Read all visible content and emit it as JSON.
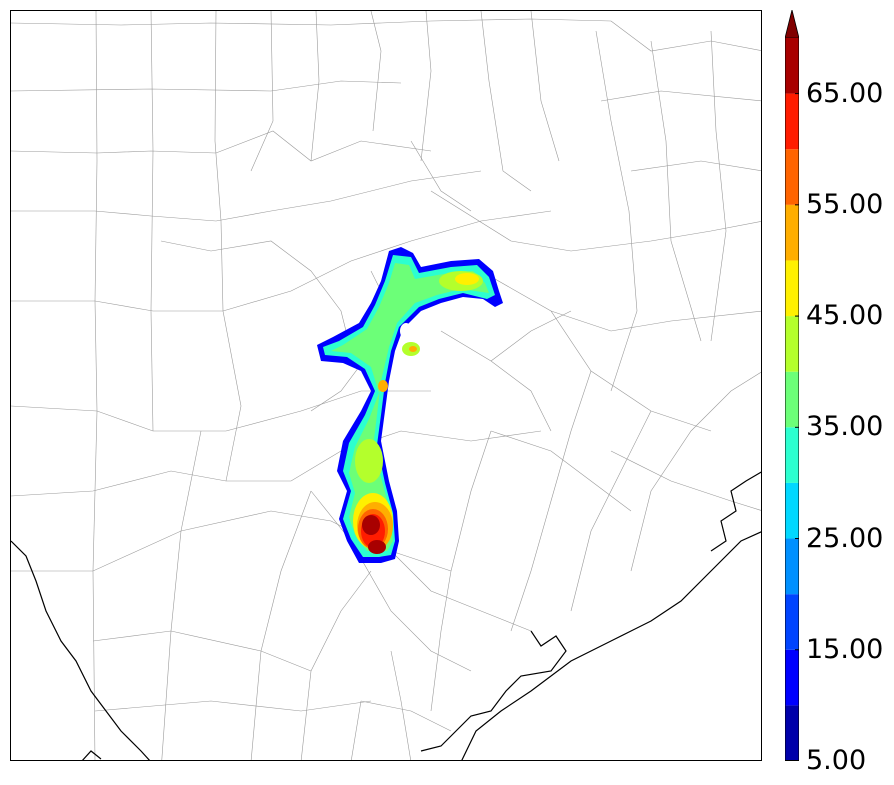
{
  "map": {
    "county_color": "#9a9a9a",
    "coast_color": "#000000"
  },
  "colorbar": {
    "levels": [
      5,
      10,
      15,
      20,
      25,
      30,
      35,
      40,
      45,
      50,
      55,
      60,
      65,
      70
    ],
    "colors": [
      "#0000aa",
      "#0000ff",
      "#0044ff",
      "#0090ff",
      "#00d8ff",
      "#2cffd0",
      "#6cff78",
      "#b4ff2c",
      "#fff000",
      "#ffae00",
      "#ff6400",
      "#ff1c00",
      "#a80000"
    ],
    "extend_color": "#800000",
    "labels": [
      {
        "value": 65,
        "text": "65.00"
      },
      {
        "value": 55,
        "text": "55.00"
      },
      {
        "value": 45,
        "text": "45.00"
      },
      {
        "value": 35,
        "text": "35.00"
      },
      {
        "value": 25,
        "text": "25.00"
      },
      {
        "value": 15,
        "text": "15.00"
      },
      {
        "value": 5,
        "text": "5.00"
      }
    ]
  }
}
